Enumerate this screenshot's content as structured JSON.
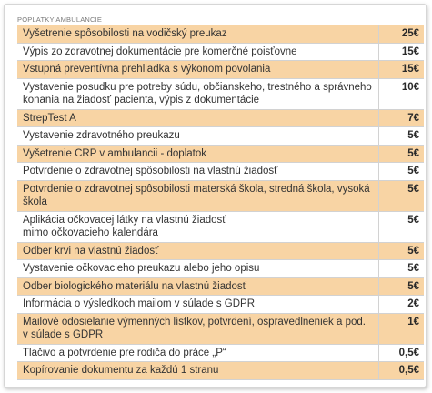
{
  "header": {
    "title": "POPLATKY AMBULANCIE"
  },
  "colors": {
    "highlight_row": "#f8d4a4",
    "plain_row": "#ffffff",
    "border": "#d2d2d2"
  },
  "fees": [
    {
      "name": "Vyšetrenie spôsobilosti  na vodičský preukaz",
      "price": "25€"
    },
    {
      "name": "Výpis zo zdravotnej dokumentácie pre komerčné poisťovne",
      "price": "15€"
    },
    {
      "name": "Vstupná preventívna prehliadka s výkonom povolania",
      "price": "15€"
    },
    {
      "name": "Vystavenie posudku pre potreby súdu, občianskeho, trestného a správneho konania na žiadosť pacienta, výpis z dokumentácie",
      "price": "10€"
    },
    {
      "name": "StrepTest A",
      "price": "7€"
    },
    {
      "name": "Vystavenie zdravotného preukazu",
      "price": "5€"
    },
    {
      "name": "Vyšetrenie CRP v ambulancii - doplatok",
      "price": "5€"
    },
    {
      "name": "Potvrdenie o zdravotnej spôsobilosti  na vlastnú žiadosť",
      "price": "5€"
    },
    {
      "name": "Potvrdenie o zdravotnej spôsobilosti  materská škola, stredná škola, vysoká škola",
      "price": "5€"
    },
    {
      "name": "Aplikácia očkovacej látky  na vlastnú    žiadosť\nmimo očkovacieho  kalendára",
      "price": "5€"
    },
    {
      "name": "Odber krvi na vlastnú žiadosť",
      "price": "5€"
    },
    {
      "name": "Vystavenie očkovacieho preukazu alebo jeho opisu",
      "price": "5€"
    },
    {
      "name": "Odber biologického  materiálu na vlastnú žiadosť",
      "price": "5€"
    },
    {
      "name": "Informácia o výsledkoch mailom v súlade s GDPR",
      "price": "2€"
    },
    {
      "name": "Mailové odosielanie výmenných lístkov, potvrdení, ospravedlneniek a pod. v súlade s GDPR",
      "price": "1€"
    },
    {
      "name": "Tlačivo a potvrdenie pre rodiča do práce  „P“",
      "price": "0,5€"
    },
    {
      "name": "Kopírovanie dokumentu za každú 1 stranu",
      "price": "0,5€"
    }
  ]
}
